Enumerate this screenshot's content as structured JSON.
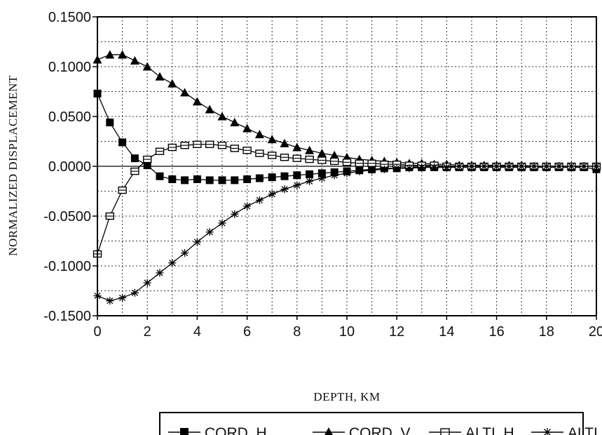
{
  "chart_data": {
    "type": "line",
    "title": "",
    "xlabel": "DEPTH, KM",
    "ylabel": "NORMALIZED DISPLACEMENT",
    "xlim": [
      0,
      20
    ],
    "ylim": [
      -0.15,
      0.15
    ],
    "x_ticks": [
      "0",
      "2",
      "4",
      "6",
      "8",
      "10",
      "12",
      "14",
      "16",
      "18",
      "20"
    ],
    "y_ticks": [
      "0.1500",
      "0.1000",
      "0.0500",
      "0.0000",
      "-0.0500",
      "-0.1000",
      "-0.1500"
    ],
    "grid": true,
    "legend_position": "bottom",
    "x": [
      0,
      0.5,
      1,
      1.5,
      2,
      2.5,
      3,
      3.5,
      4,
      4.5,
      5,
      5.5,
      6,
      6.5,
      7,
      7.5,
      8,
      8.5,
      9,
      9.5,
      10,
      10.5,
      11,
      11.5,
      12,
      12.5,
      13,
      13.5,
      14,
      14.5,
      15,
      15.5,
      16,
      16.5,
      17,
      17.5,
      18,
      18.5,
      19,
      19.5,
      20
    ],
    "series": [
      {
        "name": "CORD.,H",
        "marker": "square-filled",
        "values": [
          0.073,
          0.044,
          0.024,
          0.008,
          0.001,
          -0.01,
          -0.013,
          -0.014,
          -0.013,
          -0.014,
          -0.014,
          -0.014,
          -0.013,
          -0.012,
          -0.011,
          -0.01,
          -0.009,
          -0.008,
          -0.007,
          -0.006,
          -0.005,
          -0.004,
          -0.003,
          -0.002,
          -0.002,
          -0.001,
          -0.001,
          -0.001,
          -0.001,
          -0.001,
          -0.001,
          -0.001,
          -0.001,
          -0.001,
          -0.001,
          -0.001,
          -0.001,
          -0.001,
          -0.001,
          -0.001,
          -0.003
        ]
      },
      {
        "name": "CORD.,V",
        "marker": "triangle-filled",
        "values": [
          0.107,
          0.112,
          0.112,
          0.106,
          0.1,
          0.09,
          0.083,
          0.074,
          0.065,
          0.057,
          0.05,
          0.044,
          0.038,
          0.032,
          0.027,
          0.023,
          0.019,
          0.016,
          0.013,
          0.011,
          0.009,
          0.007,
          0.006,
          0.005,
          0.004,
          0.003,
          0.003,
          0.002,
          0.002,
          0.001,
          0.001,
          0.001,
          0.001,
          0.001,
          0.001,
          0.0,
          0.0,
          0.0,
          0.0,
          0.0,
          0.0
        ]
      },
      {
        "name": "ALTI.,H",
        "marker": "square-open",
        "values": [
          -0.088,
          -0.05,
          -0.024,
          -0.005,
          0.007,
          0.015,
          0.019,
          0.021,
          0.022,
          0.022,
          0.021,
          0.018,
          0.016,
          0.013,
          0.011,
          0.009,
          0.008,
          0.007,
          0.006,
          0.005,
          0.004,
          0.003,
          0.003,
          0.002,
          0.002,
          0.001,
          0.001,
          0.001,
          0.0,
          0.0,
          0.0,
          0.0,
          0.0,
          0.0,
          0.0,
          0.0,
          0.0,
          0.0,
          0.0,
          0.0,
          0.0
        ]
      },
      {
        "name": "ALTI.,V",
        "marker": "asterisk",
        "values": [
          -0.13,
          -0.135,
          -0.132,
          -0.127,
          -0.117,
          -0.107,
          -0.097,
          -0.087,
          -0.076,
          -0.066,
          -0.057,
          -0.048,
          -0.04,
          -0.034,
          -0.028,
          -0.023,
          -0.019,
          -0.015,
          -0.012,
          -0.009,
          -0.007,
          -0.005,
          -0.004,
          -0.003,
          -0.002,
          -0.002,
          -0.001,
          -0.001,
          -0.001,
          0.0,
          0.0,
          0.0,
          0.0,
          0.0,
          0.0,
          0.0,
          0.0,
          0.0,
          0.0,
          0.0,
          0.0
        ]
      }
    ]
  }
}
